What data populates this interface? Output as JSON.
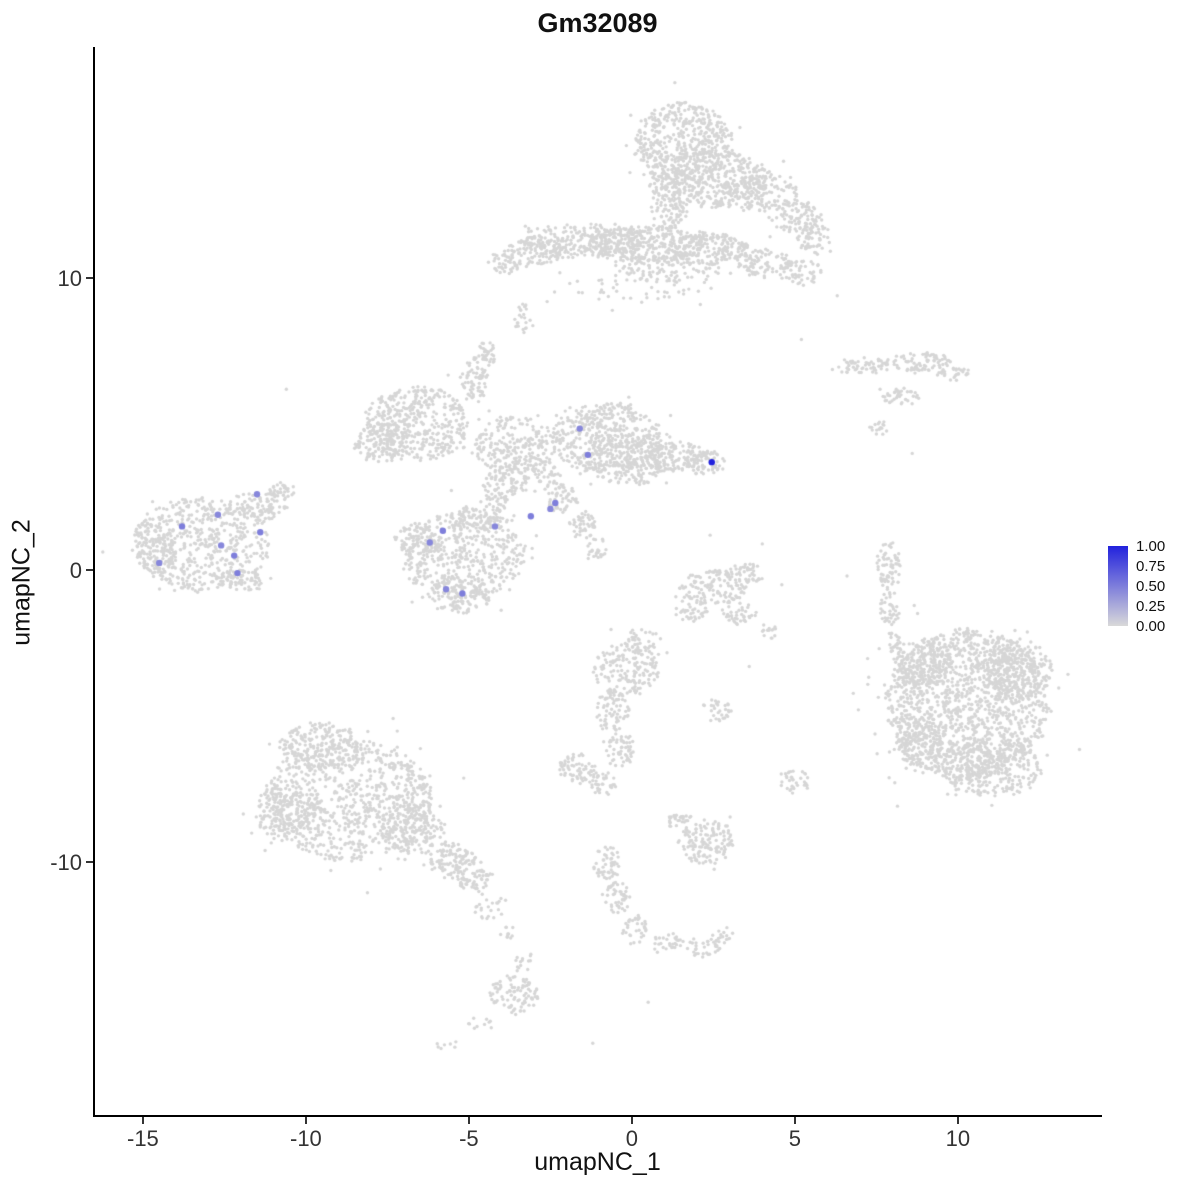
{
  "title": "Gm32089",
  "axes": {
    "x_label": "umapNC_1",
    "y_label": "umapNC_2",
    "x_ticks": [
      -15,
      -10,
      -5,
      0,
      5,
      10
    ],
    "y_ticks": [
      10,
      0,
      -10
    ]
  },
  "legend": {
    "labels": [
      "1.00",
      "0.75",
      "0.50",
      "0.25",
      "0.00"
    ]
  },
  "colors": {
    "point_gray": "#d6d6d6",
    "expression_low": "#d9d9d9",
    "expression_high": "#2222dd",
    "axis": "#000000",
    "text": "#111111"
  },
  "chart_data": {
    "type": "scatter",
    "title": "Gm32089",
    "xlabel": "umapNC_1",
    "ylabel": "umapNC_2",
    "xlim": [
      -16.47,
      14.36
    ],
    "ylim": [
      -18.66,
      17.92
    ],
    "legend_values": [
      1.0,
      0.75,
      0.5,
      0.25,
      0.0
    ],
    "background_clusters": [
      [
        1.6,
        14.6,
        1.5,
        1.4,
        500
      ],
      [
        2.4,
        13.4,
        1.9,
        1.0,
        380
      ],
      [
        1.15,
        12.45,
        0.55,
        0.8,
        90
      ],
      [
        3.9,
        12.9,
        1.2,
        0.6,
        140
      ],
      [
        5.0,
        12.1,
        0.8,
        0.55,
        90
      ],
      [
        5.6,
        11.35,
        0.5,
        0.5,
        60
      ],
      [
        -1.5,
        11.3,
        1.9,
        0.6,
        260
      ],
      [
        0.5,
        11.2,
        1.8,
        0.6,
        280
      ],
      [
        2.3,
        11.0,
        1.3,
        0.55,
        190
      ],
      [
        -3.0,
        10.9,
        0.9,
        0.45,
        90
      ],
      [
        -3.95,
        10.5,
        0.5,
        0.4,
        45
      ],
      [
        1.0,
        10.35,
        1.7,
        0.5,
        120
      ],
      [
        4.0,
        10.5,
        0.9,
        0.5,
        90
      ],
      [
        5.2,
        10.2,
        0.6,
        0.45,
        55
      ],
      [
        0.0,
        9.7,
        2.6,
        0.5,
        45
      ],
      [
        -3.3,
        8.6,
        0.35,
        0.5,
        25
      ],
      [
        7.1,
        7.0,
        0.8,
        0.3,
        60
      ],
      [
        8.8,
        7.1,
        1.0,
        0.35,
        80
      ],
      [
        9.9,
        6.75,
        0.5,
        0.25,
        30
      ],
      [
        8.2,
        5.9,
        0.6,
        0.3,
        40
      ],
      [
        7.6,
        4.9,
        0.3,
        0.25,
        16
      ],
      [
        -6.6,
        5.0,
        1.6,
        1.3,
        430
      ],
      [
        -7.7,
        4.4,
        0.8,
        0.7,
        120
      ],
      [
        -4.85,
        6.5,
        0.4,
        0.85,
        70
      ],
      [
        -4.45,
        7.45,
        0.3,
        0.45,
        35
      ],
      [
        -3.6,
        4.3,
        1.25,
        0.95,
        220
      ],
      [
        -3.2,
        3.3,
        1.0,
        0.6,
        90
      ],
      [
        -0.8,
        4.5,
        1.7,
        1.2,
        450
      ],
      [
        -0.1,
        3.8,
        1.2,
        0.9,
        220
      ],
      [
        1.3,
        3.9,
        0.9,
        0.5,
        110
      ],
      [
        2.25,
        3.7,
        0.6,
        0.4,
        70
      ],
      [
        -2.1,
        2.5,
        0.5,
        0.55,
        55
      ],
      [
        -1.5,
        1.55,
        0.4,
        0.5,
        45
      ],
      [
        -1.1,
        0.75,
        0.3,
        0.4,
        25
      ],
      [
        -4.05,
        2.8,
        0.5,
        0.7,
        70
      ],
      [
        -5.2,
        0.5,
        1.9,
        1.5,
        480
      ],
      [
        -6.6,
        1.0,
        0.7,
        0.6,
        90
      ],
      [
        -5.3,
        -0.9,
        0.95,
        0.6,
        110
      ],
      [
        -4.6,
        1.8,
        0.8,
        0.45,
        70
      ],
      [
        -13.2,
        0.9,
        2.1,
        1.6,
        560
      ],
      [
        -11.3,
        2.2,
        0.85,
        0.5,
        90
      ],
      [
        -10.75,
        2.7,
        0.4,
        0.3,
        30
      ],
      [
        -12.0,
        -0.35,
        0.7,
        0.4,
        60
      ],
      [
        -14.6,
        0.6,
        0.6,
        0.75,
        80
      ],
      [
        2.5,
        -0.6,
        1.0,
        0.6,
        120
      ],
      [
        3.5,
        -0.1,
        0.6,
        0.35,
        50
      ],
      [
        1.8,
        -1.35,
        0.5,
        0.4,
        40
      ],
      [
        3.3,
        -1.5,
        0.5,
        0.35,
        35
      ],
      [
        7.9,
        0.2,
        0.35,
        0.85,
        65
      ],
      [
        7.9,
        -1.3,
        0.3,
        0.6,
        40
      ],
      [
        8.1,
        -2.6,
        0.25,
        0.55,
        28
      ],
      [
        8.4,
        -4.0,
        0.3,
        0.9,
        18
      ],
      [
        10.3,
        -4.6,
        2.5,
        2.6,
        1400
      ],
      [
        11.8,
        -3.4,
        1.1,
        1.0,
        260
      ],
      [
        9.0,
        -3.2,
        0.85,
        0.8,
        150
      ],
      [
        11.0,
        -6.8,
        1.6,
        0.95,
        280
      ],
      [
        8.8,
        -5.8,
        0.8,
        0.9,
        130
      ],
      [
        -8.7,
        -7.9,
        2.6,
        2.1,
        850
      ],
      [
        -9.6,
        -6.0,
        1.2,
        0.8,
        190
      ],
      [
        -10.6,
        -8.3,
        0.95,
        0.95,
        160
      ],
      [
        -6.7,
        -8.8,
        1.0,
        0.9,
        170
      ],
      [
        -5.6,
        -9.9,
        0.8,
        0.55,
        110
      ],
      [
        -4.8,
        -10.6,
        0.55,
        0.4,
        60
      ],
      [
        -4.3,
        -11.6,
        0.5,
        0.5,
        22
      ],
      [
        -3.8,
        -12.4,
        0.3,
        0.3,
        10
      ],
      [
        -0.2,
        -3.4,
        1.0,
        0.95,
        170
      ],
      [
        -0.6,
        -4.9,
        0.5,
        0.75,
        70
      ],
      [
        -0.4,
        -6.1,
        0.45,
        0.6,
        55
      ],
      [
        -1.7,
        -6.8,
        0.55,
        0.5,
        65
      ],
      [
        -0.9,
        -7.3,
        0.4,
        0.4,
        35
      ],
      [
        0.3,
        -2.4,
        0.55,
        0.4,
        35
      ],
      [
        2.6,
        -4.8,
        0.5,
        0.35,
        30
      ],
      [
        5.0,
        -7.2,
        0.45,
        0.4,
        35
      ],
      [
        4.2,
        -2.1,
        0.3,
        0.25,
        14
      ],
      [
        2.3,
        -9.3,
        0.85,
        0.75,
        140
      ],
      [
        1.5,
        -8.6,
        0.4,
        0.3,
        30
      ],
      [
        -0.8,
        -10.0,
        0.45,
        0.55,
        50
      ],
      [
        -0.4,
        -11.2,
        0.4,
        0.6,
        45
      ],
      [
        0.1,
        -12.3,
        0.35,
        0.5,
        35
      ],
      [
        1.1,
        -12.75,
        0.5,
        0.3,
        30
      ],
      [
        2.2,
        -12.9,
        0.5,
        0.35,
        35
      ],
      [
        2.85,
        -12.45,
        0.3,
        0.3,
        15
      ],
      [
        -3.6,
        -14.5,
        0.75,
        0.68,
        90
      ],
      [
        -3.3,
        -13.4,
        0.25,
        0.45,
        14
      ],
      [
        -4.7,
        -15.6,
        0.4,
        0.3,
        10
      ],
      [
        -5.7,
        -16.3,
        0.3,
        0.25,
        7
      ]
    ],
    "sparse_points": [
      [
        -10.6,
        6.2
      ],
      [
        5.2,
        7.9
      ],
      [
        6.3,
        9.4
      ],
      [
        7.3,
        4.9
      ],
      [
        8.6,
        4.0
      ],
      [
        4.0,
        0.9
      ],
      [
        4.6,
        -0.5
      ],
      [
        -2.6,
        9.2
      ],
      [
        0.8,
        9.3
      ],
      [
        2.1,
        9.1
      ],
      [
        -0.6,
        8.9
      ],
      [
        0.5,
        -14.8
      ],
      [
        -1.2,
        -16.2
      ],
      [
        2.4,
        1.2
      ],
      [
        3.6,
        -3.3
      ],
      [
        6.6,
        -0.2
      ]
    ],
    "expressing_cells": [
      {
        "x": -11.5,
        "y": 2.6,
        "value": 0.45
      },
      {
        "x": -13.8,
        "y": 1.5,
        "value": 0.5
      },
      {
        "x": -12.7,
        "y": 1.9,
        "value": 0.45
      },
      {
        "x": -11.4,
        "y": 1.3,
        "value": 0.5
      },
      {
        "x": -12.6,
        "y": 0.85,
        "value": 0.45
      },
      {
        "x": -12.2,
        "y": 0.5,
        "value": 0.5
      },
      {
        "x": -14.5,
        "y": 0.25,
        "value": 0.45
      },
      {
        "x": -12.1,
        "y": -0.1,
        "value": 0.5
      },
      {
        "x": -6.2,
        "y": 0.95,
        "value": 0.45
      },
      {
        "x": -5.8,
        "y": 1.35,
        "value": 0.5
      },
      {
        "x": -5.7,
        "y": -0.65,
        "value": 0.45
      },
      {
        "x": -5.2,
        "y": -0.8,
        "value": 0.5
      },
      {
        "x": -4.2,
        "y": 1.5,
        "value": 0.45
      },
      {
        "x": -3.1,
        "y": 1.85,
        "value": 0.5
      },
      {
        "x": -2.5,
        "y": 2.1,
        "value": 0.45
      },
      {
        "x": -2.35,
        "y": 2.3,
        "value": 0.5
      },
      {
        "x": -1.6,
        "y": 4.85,
        "value": 0.45
      },
      {
        "x": -1.35,
        "y": 3.95,
        "value": 0.5
      },
      {
        "x": 2.45,
        "y": 3.7,
        "value": 1.0
      }
    ]
  }
}
